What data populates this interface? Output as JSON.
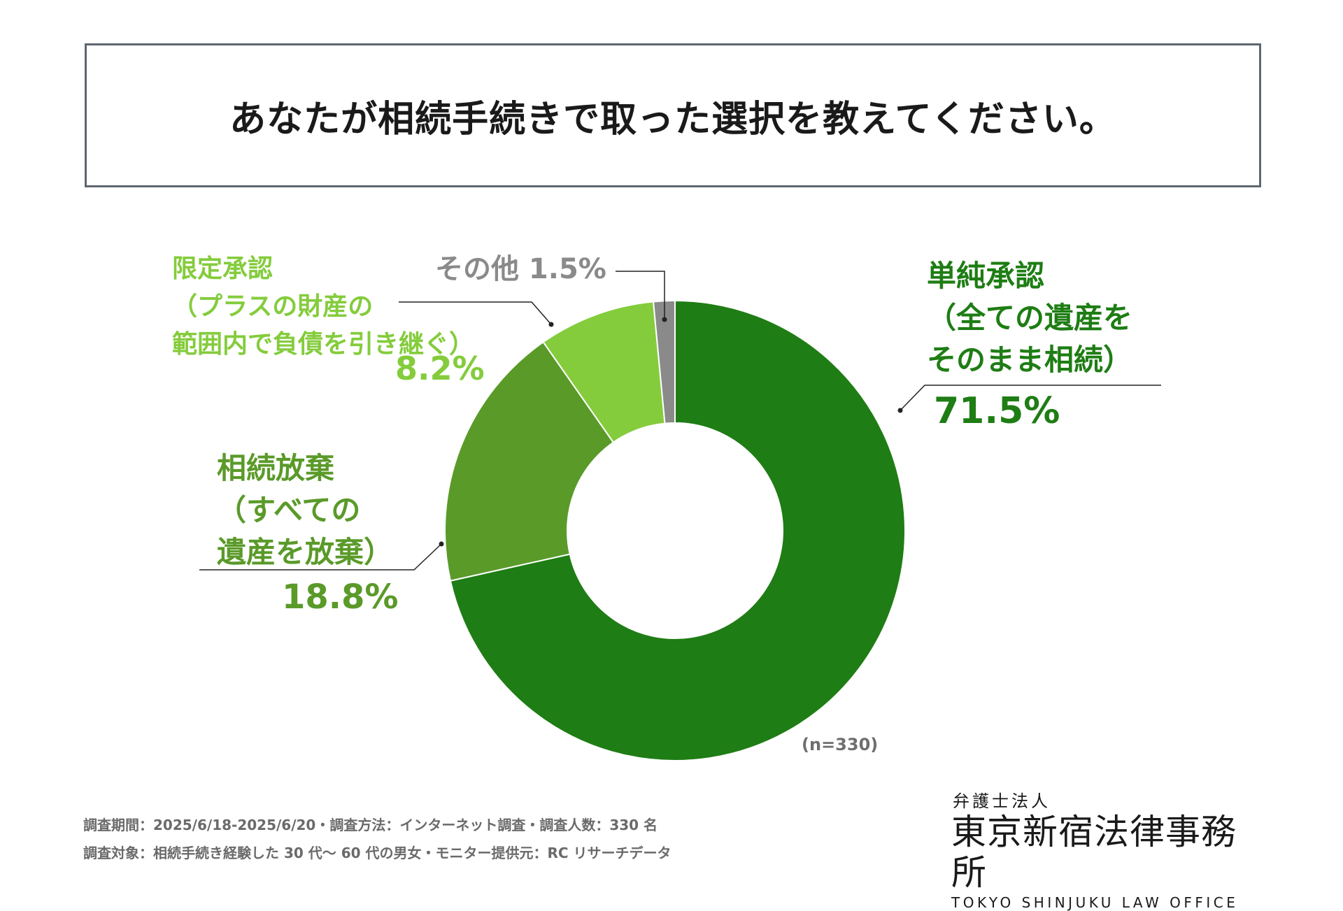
{
  "title": "あなたが相続手続きで取った選択を教えてください。",
  "chart_data": {
    "type": "pie",
    "donut": true,
    "title": "あなたが相続手続きで取った選択を教えてください。",
    "sample_size": "(n=330)",
    "slices": [
      {
        "key": "tanjun",
        "label_lines": [
          "単純承認",
          "（全ての遺産を",
          "そのまま相続）"
        ],
        "value": 71.5,
        "display": "71.5%",
        "color": "#1e7d14"
      },
      {
        "key": "houki",
        "label_lines": [
          "相続放棄",
          "（すべての",
          "遺産を放棄）"
        ],
        "value": 18.8,
        "display": "18.8%",
        "color": "#5a9a29"
      },
      {
        "key": "gentei",
        "label_lines": [
          "限定承認",
          "（プラスの財産の",
          "範囲内で負債を引き継ぐ）"
        ],
        "value": 8.2,
        "display": "8.2%",
        "color": "#84cc3c"
      },
      {
        "key": "other",
        "label_lines": [
          "その他 1.5%"
        ],
        "value": 1.5,
        "display": "1.5%",
        "color": "#8a8a8a"
      }
    ]
  },
  "footer": {
    "line1": "調査期間：2025/6/18-2025/6/20・調査方法：インターネット調査・調査人数：330 名",
    "line2": "調査対象：相続手続き経験した 30 代～ 60 代の男女・モニター提供元：RC リサーチデータ"
  },
  "logo": {
    "sub": "弁護士法人",
    "main": "東京新宿法律事務所",
    "english": "TOKYO SHINJUKU LAW OFFICE"
  }
}
